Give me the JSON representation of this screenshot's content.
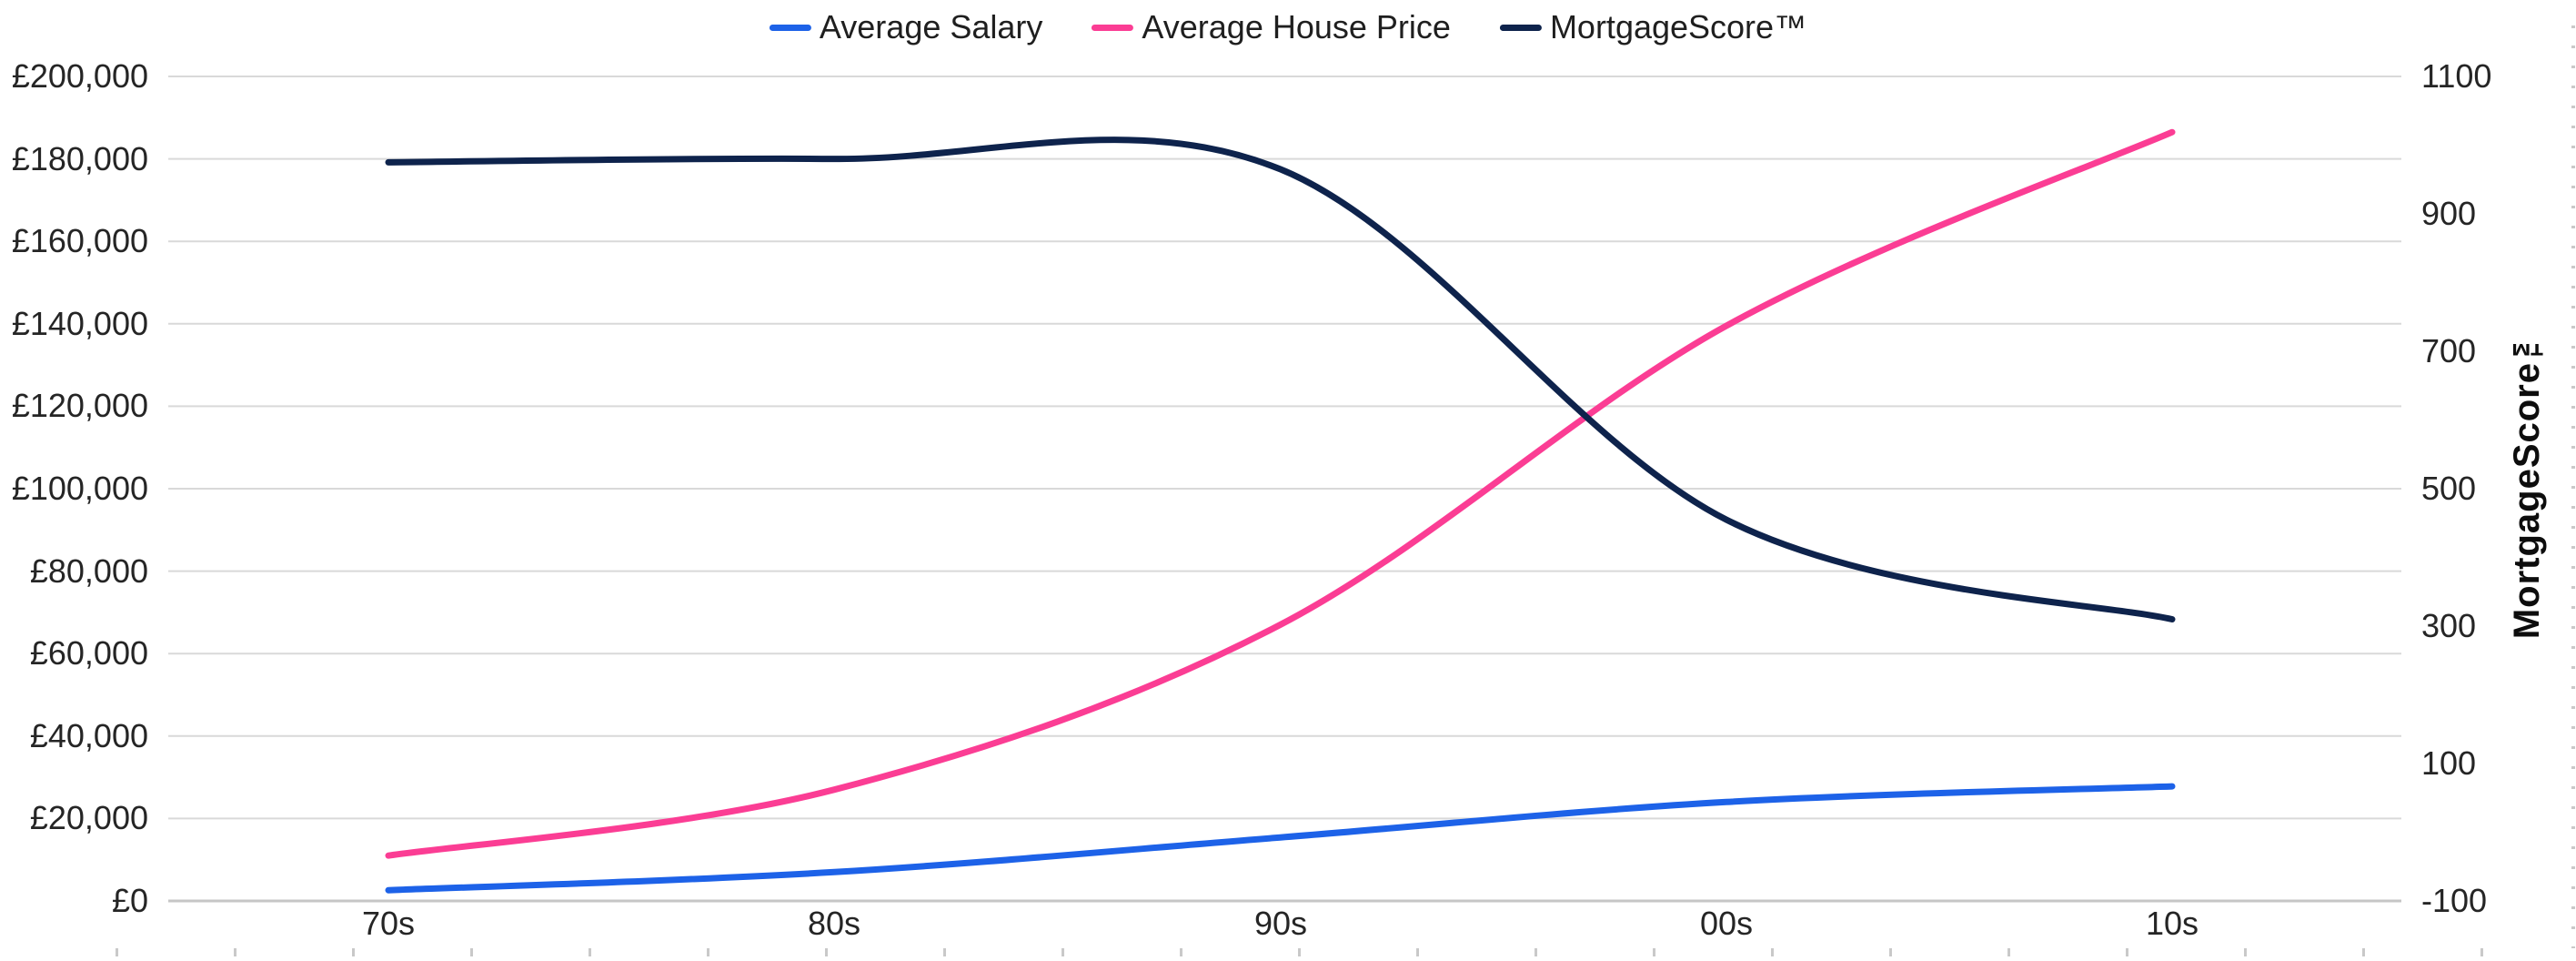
{
  "chart_data": {
    "type": "line",
    "categories": [
      "70s",
      "80s",
      "90s",
      "00s",
      "10s"
    ],
    "series": [
      {
        "name": "Average Salary",
        "color": "#1D62E8",
        "axis": "left",
        "values": [
          2600,
          7000,
          15400,
          24000,
          27800
        ]
      },
      {
        "name": "Average House Price",
        "color": "#FB3D94",
        "axis": "left",
        "values": [
          11000,
          27000,
          67000,
          139500,
          186500
        ]
      },
      {
        "name": "MortgageScore™",
        "color": "#0E234C",
        "axis": "right",
        "values": [
          975,
          980,
          965,
          455,
          310
        ]
      }
    ],
    "left_axis": {
      "min": 0,
      "max": 200000,
      "ticks": [
        "£200,000",
        "£180,000",
        "£160,000",
        "£140,000",
        "£120,000",
        "£100,000",
        "£80,000",
        "£60,000",
        "£40,000",
        "£20,000",
        "£0"
      ]
    },
    "right_axis": {
      "min": -100,
      "max": 1100,
      "title": "MortgageScore™",
      "ticks": [
        "1100",
        "900",
        "700",
        "500",
        "300",
        "100",
        "-100"
      ]
    },
    "grid": true,
    "legend_position": "top",
    "smoothing": "catmull-rom"
  },
  "colors": {
    "gridline": "#D9D9D9",
    "axis_line": "#C6C6C6",
    "tick_text": "#252525",
    "border_dots": "#C9C9C9"
  }
}
